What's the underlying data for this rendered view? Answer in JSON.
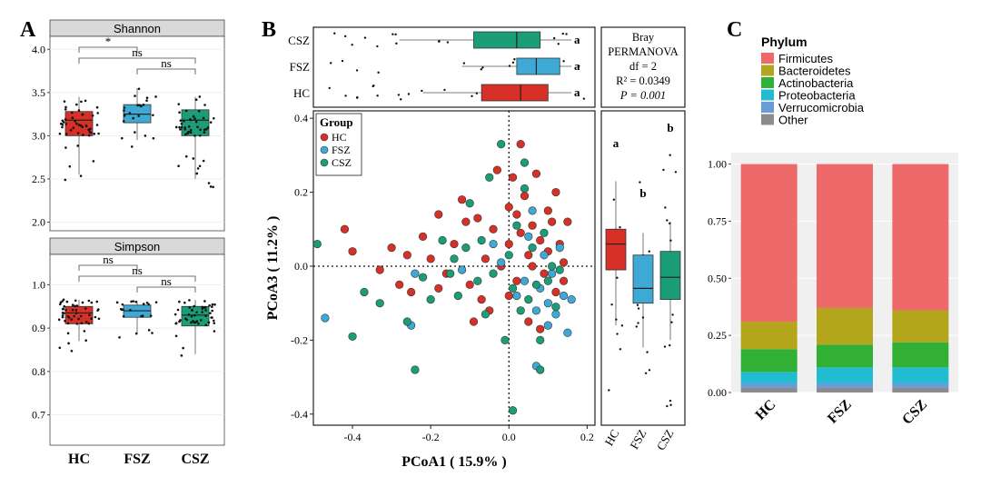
{
  "colors": {
    "HC": "#d73027",
    "FSZ": "#3fa9d6",
    "CSZ": "#1b9e77",
    "strip": "#d9d9d9"
  },
  "panel_labels": [
    "A",
    "B",
    "C"
  ],
  "chart_data": [
    {
      "id": "A1",
      "type": "box",
      "strip": "Shannon",
      "categories": [
        "HC",
        "FSZ",
        "CSZ"
      ],
      "ylim": [
        1.9,
        4.15
      ],
      "yticks": [
        "2.0",
        "2.5",
        "3.0",
        "3.5",
        "4.0"
      ],
      "boxes": [
        {
          "q1": 3.0,
          "median": 3.18,
          "q3": 3.28,
          "wlo": 2.55,
          "whi": 3.45
        },
        {
          "q1": 3.15,
          "median": 3.25,
          "q3": 3.36,
          "wlo": 2.95,
          "whi": 3.55
        },
        {
          "q1": 3.0,
          "median": 3.18,
          "q3": 3.3,
          "wlo": 2.5,
          "whi": 3.45
        }
      ],
      "brackets": [
        {
          "from": 0,
          "to": 1,
          "label": "*"
        },
        {
          "from": 0,
          "to": 2,
          "label": "ns"
        },
        {
          "from": 1,
          "to": 2,
          "label": "ns"
        }
      ]
    },
    {
      "id": "A2",
      "type": "box",
      "strip": "Simpson",
      "categories": [
        "HC",
        "FSZ",
        "CSZ"
      ],
      "ylim": [
        0.63,
        1.07
      ],
      "yticks": [
        "0.7",
        "0.8",
        "0.9",
        "1.0"
      ],
      "boxes": [
        {
          "q1": 0.91,
          "median": 0.935,
          "q3": 0.95,
          "wlo": 0.87,
          "whi": 0.965
        },
        {
          "q1": 0.925,
          "median": 0.94,
          "q3": 0.953,
          "wlo": 0.89,
          "whi": 0.962
        },
        {
          "q1": 0.905,
          "median": 0.93,
          "q3": 0.95,
          "wlo": 0.84,
          "whi": 0.965
        }
      ],
      "brackets": [
        {
          "from": 0,
          "to": 1,
          "label": "ns"
        },
        {
          "from": 0,
          "to": 2,
          "label": "ns"
        },
        {
          "from": 1,
          "to": 2,
          "label": "ns"
        }
      ]
    },
    {
      "id": "B_scatter",
      "type": "scatter",
      "xlabel": "PCoA1 ( 15.9% )",
      "ylabel": "PCoA3 ( 11.2% )",
      "xlim": [
        -0.5,
        0.22
      ],
      "ylim": [
        -0.43,
        0.42
      ],
      "xticks": [
        "-0.4",
        "-0.2",
        "0.0",
        "0.2"
      ],
      "yticks": [
        "-0.4",
        "-0.2",
        "0.0",
        "0.2",
        "0.4"
      ],
      "legend": {
        "title": "Group",
        "entries": [
          "HC",
          "FSZ",
          "CSZ"
        ],
        "placement": "top-left"
      },
      "points": {
        "HC": [
          [
            -0.42,
            0.1
          ],
          [
            -0.4,
            0.04
          ],
          [
            -0.33,
            -0.01
          ],
          [
            -0.3,
            0.05
          ],
          [
            -0.28,
            -0.05
          ],
          [
            -0.25,
            -0.07
          ],
          [
            -0.22,
            0.08
          ],
          [
            -0.2,
            0.02
          ],
          [
            -0.18,
            0.14
          ],
          [
            -0.16,
            -0.02
          ],
          [
            -0.14,
            0.06
          ],
          [
            -0.12,
            0.18
          ],
          [
            -0.1,
            -0.05
          ],
          [
            -0.08,
            0.13
          ],
          [
            -0.06,
            0.02
          ],
          [
            -0.05,
            -0.12
          ],
          [
            -0.04,
            0.1
          ],
          [
            -0.03,
            0.26
          ],
          [
            -0.02,
            0.0
          ],
          [
            0.0,
            0.06
          ],
          [
            0.0,
            0.16
          ],
          [
            0.01,
            0.24
          ],
          [
            0.02,
            -0.04
          ],
          [
            0.03,
            0.09
          ],
          [
            0.04,
            0.19
          ],
          [
            0.05,
            0.03
          ],
          [
            0.05,
            -0.15
          ],
          [
            0.06,
            0.11
          ],
          [
            0.07,
            0.25
          ],
          [
            0.08,
            0.07
          ],
          [
            0.09,
            -0.02
          ],
          [
            0.1,
            0.15
          ],
          [
            0.1,
            0.04
          ],
          [
            0.11,
            0.12
          ],
          [
            0.12,
            -0.07
          ],
          [
            0.12,
            0.2
          ],
          [
            0.13,
            0.06
          ],
          [
            0.14,
            0.01
          ],
          [
            0.15,
            0.12
          ],
          [
            -0.07,
            -0.09
          ],
          [
            0.0,
            -0.08
          ],
          [
            0.08,
            -0.17
          ],
          [
            -0.11,
            0.12
          ],
          [
            -0.18,
            -0.06
          ],
          [
            0.03,
            0.33
          ],
          [
            0.06,
            0.0
          ],
          [
            -0.09,
            -0.15
          ],
          [
            0.14,
            -0.04
          ],
          [
            -0.26,
            0.03
          ],
          [
            0.02,
            0.14
          ]
        ],
        "FSZ": [
          [
            -0.47,
            -0.14
          ],
          [
            -0.25,
            -0.16
          ],
          [
            -0.24,
            -0.02
          ],
          [
            -0.12,
            -0.01
          ],
          [
            -0.04,
            0.06
          ],
          [
            0.02,
            -0.08
          ],
          [
            0.04,
            -0.04
          ],
          [
            0.06,
            0.15
          ],
          [
            0.07,
            -0.12
          ],
          [
            0.08,
            -0.06
          ],
          [
            0.09,
            0.03
          ],
          [
            0.1,
            -0.1
          ],
          [
            0.11,
            -0.02
          ],
          [
            0.12,
            -0.13
          ],
          [
            0.13,
            0.05
          ],
          [
            0.14,
            -0.08
          ],
          [
            0.15,
            -0.18
          ],
          [
            0.16,
            -0.09
          ],
          [
            0.07,
            -0.27
          ],
          [
            0.05,
            0.08
          ],
          [
            -0.02,
            0.01
          ],
          [
            0.1,
            -0.16
          ]
        ],
        "CSZ": [
          [
            -0.49,
            0.06
          ],
          [
            -0.4,
            -0.19
          ],
          [
            -0.37,
            -0.07
          ],
          [
            -0.33,
            -0.1
          ],
          [
            -0.26,
            -0.15
          ],
          [
            -0.24,
            -0.28
          ],
          [
            -0.22,
            -0.03
          ],
          [
            -0.2,
            -0.09
          ],
          [
            -0.17,
            0.07
          ],
          [
            -0.15,
            -0.02
          ],
          [
            -0.13,
            -0.08
          ],
          [
            -0.11,
            0.05
          ],
          [
            -0.1,
            0.17
          ],
          [
            -0.08,
            -0.04
          ],
          [
            -0.07,
            0.07
          ],
          [
            -0.06,
            -0.13
          ],
          [
            -0.04,
            -0.02
          ],
          [
            -0.02,
            0.33
          ],
          [
            -0.01,
            -0.2
          ],
          [
            0.0,
            0.03
          ],
          [
            0.01,
            -0.06
          ],
          [
            0.02,
            0.11
          ],
          [
            0.03,
            -0.12
          ],
          [
            0.04,
            0.21
          ],
          [
            0.05,
            -0.09
          ],
          [
            0.06,
            0.05
          ],
          [
            0.07,
            -0.05
          ],
          [
            0.08,
            -0.2
          ],
          [
            0.09,
            0.09
          ],
          [
            0.1,
            -0.04
          ],
          [
            0.11,
            0.0
          ],
          [
            0.12,
            -0.11
          ],
          [
            0.13,
            -0.01
          ],
          [
            0.08,
            -0.28
          ],
          [
            0.01,
            -0.39
          ],
          [
            -0.05,
            0.24
          ],
          [
            0.04,
            0.28
          ],
          [
            -0.14,
            0.02
          ]
        ]
      }
    },
    {
      "id": "B_top",
      "type": "box",
      "orientation": "horizontal",
      "categories": [
        "CSZ",
        "FSZ",
        "HC"
      ],
      "letters": [
        "a",
        "a",
        "a"
      ],
      "boxes": [
        {
          "q1": -0.09,
          "median": 0.02,
          "q3": 0.08,
          "wlo": -0.28,
          "whi": 0.16
        },
        {
          "q1": 0.02,
          "median": 0.07,
          "q3": 0.13,
          "wlo": -0.12,
          "whi": 0.16
        },
        {
          "q1": -0.07,
          "median": 0.03,
          "q3": 0.1,
          "wlo": -0.22,
          "whi": 0.16
        }
      ],
      "stats": {
        "title": "Bray",
        "method": "PERMANOVA",
        "df": "df = 2",
        "r2": "R² = 0.0349",
        "p": "P = 0.001"
      }
    },
    {
      "id": "B_right",
      "type": "box",
      "categories": [
        "HC",
        "FSZ",
        "CSZ"
      ],
      "letters": [
        "a",
        "b",
        "b"
      ],
      "boxes": [
        {
          "q1": -0.01,
          "median": 0.06,
          "q3": 0.1,
          "wlo": -0.16,
          "whi": 0.23
        },
        {
          "q1": -0.1,
          "median": -0.06,
          "q3": 0.03,
          "wlo": -0.22,
          "whi": 0.09
        },
        {
          "q1": -0.09,
          "median": -0.03,
          "q3": 0.04,
          "wlo": -0.2,
          "whi": 0.12
        }
      ]
    },
    {
      "id": "C",
      "type": "bar",
      "stacked": true,
      "categories": [
        "HC",
        "FSZ",
        "CSZ"
      ],
      "ylim": [
        0,
        1.05
      ],
      "yticks": [
        "0.00",
        "0.25",
        "0.50",
        "0.75",
        "1.00"
      ],
      "legend": {
        "title": "Phylum",
        "placement": "top"
      },
      "series": [
        {
          "name": "Other",
          "color": "#8c8c8c",
          "values": [
            0.02,
            0.02,
            0.02
          ]
        },
        {
          "name": "Verrucomicrobia",
          "color": "#6a9bd8",
          "values": [
            0.02,
            0.02,
            0.02
          ]
        },
        {
          "name": "Proteobacteria",
          "color": "#22bcd0",
          "values": [
            0.05,
            0.07,
            0.07
          ]
        },
        {
          "name": "Actinobacteria",
          "color": "#32b035",
          "values": [
            0.1,
            0.1,
            0.11
          ]
        },
        {
          "name": "Bacteroidetes",
          "color": "#b3a51c",
          "values": [
            0.12,
            0.16,
            0.14
          ]
        },
        {
          "name": "Firmicutes",
          "color": "#ee6a6a",
          "values": [
            0.69,
            0.63,
            0.64
          ]
        }
      ]
    }
  ]
}
